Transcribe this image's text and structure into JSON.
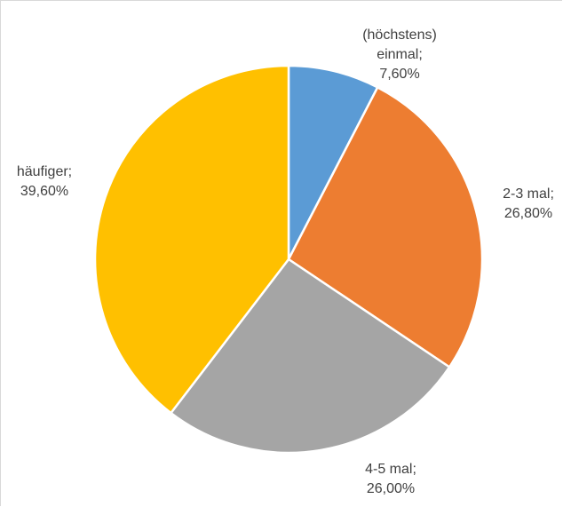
{
  "chart_data": {
    "type": "pie",
    "categories": [
      "(höchstens) einmal;",
      "2-3 mal;",
      "4-5 mal;",
      "häufiger;"
    ],
    "values": [
      7.6,
      26.8,
      26.0,
      39.6
    ],
    "value_labels": [
      "7,60%",
      "26,80%",
      "26,00%",
      "39,60%"
    ],
    "colors": [
      "#5b9bd5",
      "#ed7d31",
      "#a5a5a5",
      "#ffc000"
    ]
  }
}
